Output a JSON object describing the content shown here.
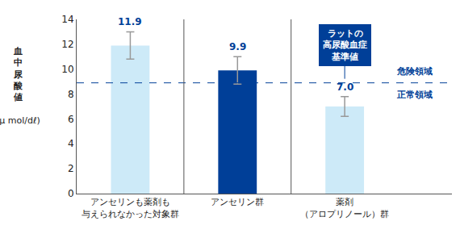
{
  "chart_data": {
    "type": "bar",
    "y_label": [
      "血中尿酸値",
      "(μ mol/dℓ)"
    ],
    "categories": [
      "アンセリンも薬剤も\n与えられなかった対象群",
      "アンセリン群",
      "薬剤\n（アロプリノール）群"
    ],
    "values": [
      11.9,
      9.9,
      7.0
    ],
    "value_labels": [
      "11.9",
      "9.9",
      "7.0"
    ],
    "errors": [
      1.1,
      1.1,
      0.8
    ],
    "colors": [
      "#cdeaf8",
      "#003f98",
      "#cdeaf8"
    ],
    "ylim": [
      0,
      14
    ],
    "yticks": [
      0,
      2,
      4,
      6,
      8,
      10,
      12,
      14
    ],
    "grid": false,
    "data_labels": true,
    "threshold": {
      "value": 8.9,
      "label": "ラットの\n高尿酸血症\n基準値"
    },
    "region_labels": {
      "above": "危険領域",
      "below": "正常領域"
    }
  }
}
